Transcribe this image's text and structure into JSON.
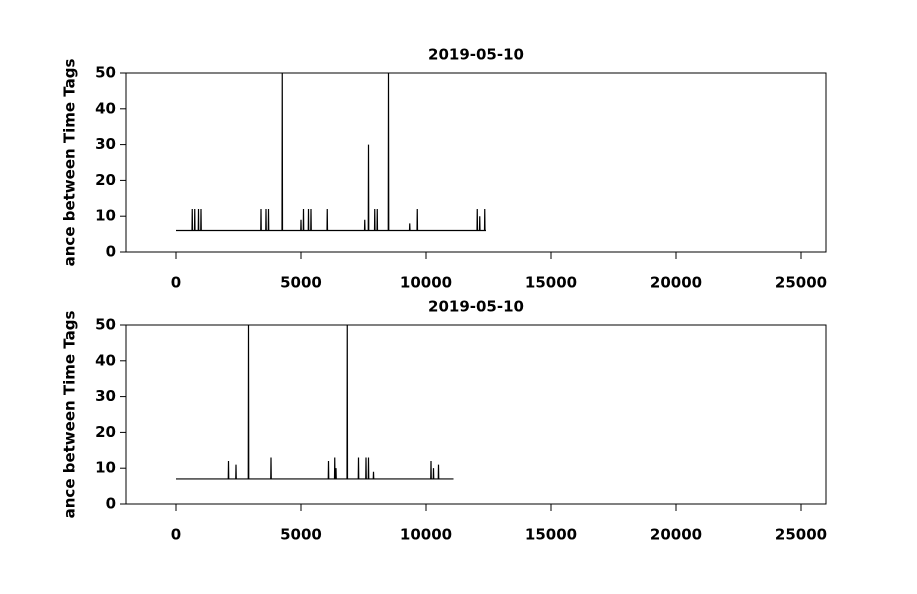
{
  "chart_data": [
    {
      "type": "line",
      "title": "2019-05-10",
      "ylabel": "ance between Time Tags",
      "color": "#000000",
      "x": [
        0,
        640,
        650,
        660,
        740,
        750,
        760,
        890,
        900,
        910,
        990,
        1000,
        1010,
        3390,
        3400,
        3410,
        3590,
        3600,
        3610,
        3690,
        3700,
        3710,
        4240,
        4250,
        4260,
        4990,
        5000,
        5010,
        5090,
        5100,
        5110,
        5290,
        5300,
        5310,
        5390,
        5400,
        5410,
        6040,
        6050,
        6060,
        7540,
        7550,
        7560,
        7690,
        7700,
        7710,
        7940,
        7950,
        7960,
        8040,
        8050,
        8060,
        8490,
        8500,
        8510,
        9340,
        9350,
        9360,
        9640,
        9650,
        9660,
        12040,
        12050,
        12060,
        12140,
        12150,
        12160,
        12340,
        12350,
        12360,
        12400
      ],
      "values": [
        6,
        6,
        12,
        6,
        6,
        12,
        6,
        6,
        12,
        6,
        6,
        12,
        6,
        6,
        12,
        6,
        6,
        12,
        6,
        6,
        12,
        6,
        6,
        50,
        6,
        6,
        9,
        6,
        6,
        12,
        6,
        6,
        12,
        6,
        6,
        12,
        6,
        6,
        12,
        6,
        6,
        9,
        6,
        6,
        30,
        6,
        6,
        12,
        6,
        6,
        12,
        6,
        6,
        50,
        6,
        6,
        8,
        6,
        6,
        12,
        6,
        6,
        12,
        6,
        6,
        10,
        6,
        6,
        12,
        6,
        6
      ],
      "xlim": [
        -2000,
        26000
      ],
      "ylim": [
        0,
        50
      ],
      "xticks": [
        0,
        5000,
        10000,
        15000,
        20000,
        25000
      ],
      "yticks": [
        0,
        10,
        20,
        30,
        40,
        50
      ]
    },
    {
      "type": "line",
      "title": "2019-05-10",
      "ylabel": "ance between Time Tags",
      "color": "#000000",
      "x": [
        0,
        2090,
        2100,
        2110,
        2390,
        2400,
        2410,
        2890,
        2900,
        2910,
        3790,
        3800,
        3810,
        6090,
        6100,
        6110,
        6340,
        6350,
        6360,
        6390,
        6400,
        6410,
        6840,
        6850,
        6860,
        7290,
        7300,
        7310,
        7590,
        7600,
        7610,
        7690,
        7700,
        7710,
        7890,
        7900,
        7910,
        10190,
        10200,
        10210,
        10290,
        10300,
        10310,
        10490,
        10500,
        10510,
        11100
      ],
      "values": [
        7,
        7,
        12,
        7,
        7,
        11,
        7,
        7,
        50,
        7,
        7,
        13,
        7,
        7,
        12,
        7,
        7,
        13,
        7,
        7,
        10,
        7,
        7,
        50,
        7,
        7,
        13,
        7,
        7,
        13,
        7,
        7,
        13,
        7,
        7,
        9,
        7,
        7,
        12,
        7,
        7,
        10,
        7,
        7,
        11,
        7,
        7
      ],
      "xlim": [
        -2000,
        26000
      ],
      "ylim": [
        0,
        50
      ],
      "xticks": [
        0,
        5000,
        10000,
        15000,
        20000,
        25000
      ],
      "yticks": [
        0,
        10,
        20,
        30,
        40,
        50
      ]
    }
  ]
}
